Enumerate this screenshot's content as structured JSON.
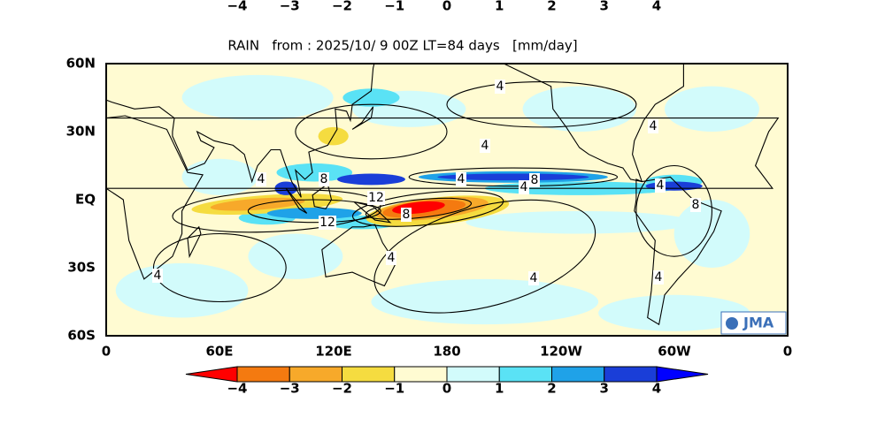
{
  "top_colorbar": {
    "labels": [
      "−4",
      "−3",
      "−2",
      "−1",
      "0",
      "1",
      "2",
      "3",
      "4"
    ]
  },
  "map": {
    "title": "RAIN   from : 2025/10/ 9 00Z LT=84 days   [mm/day]",
    "lat_labels": [
      "60N",
      "30N",
      "EQ",
      "30S",
      "60S"
    ],
    "lon_labels": [
      "0",
      "60E",
      "120E",
      "180",
      "120W",
      "60W",
      "0"
    ],
    "contour_labels": [
      "4",
      "4",
      "4",
      "4",
      "8",
      "4",
      "8",
      "4",
      "12",
      "8",
      "12",
      "4",
      "4",
      "4",
      "8",
      "4",
      "4"
    ],
    "logo": "JMA"
  },
  "colorbar": {
    "colors": [
      "#ff0000",
      "#f47a10",
      "#f7a92a",
      "#f5dc40",
      "#fffbd2",
      "#d2fbfb",
      "#5ae2f5",
      "#1fa2e8",
      "#1a3ed8",
      "#0000ff"
    ],
    "labels": [
      "−4",
      "−3",
      "−2",
      "−1",
      "0",
      "1",
      "2",
      "3",
      "4"
    ]
  }
}
